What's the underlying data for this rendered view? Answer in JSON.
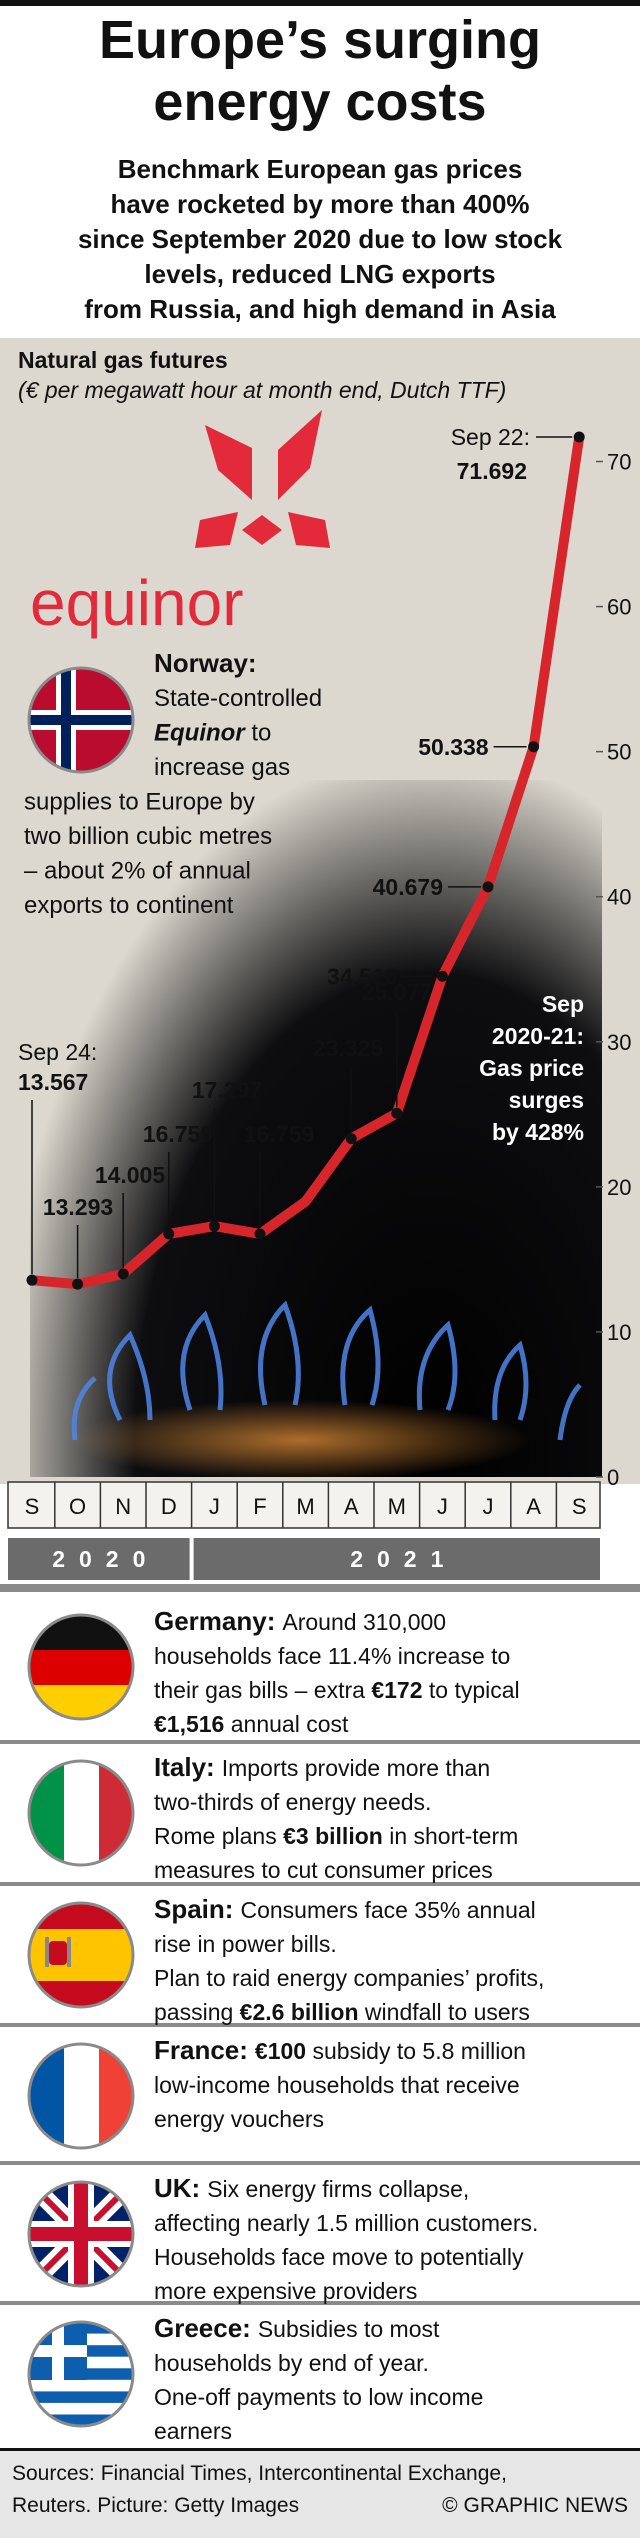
{
  "title": [
    "Europe’s surging",
    "energy costs"
  ],
  "subtitle": [
    "Benchmark European gas prices",
    "have rocketed by more than 400%",
    "since September 2020 due to low stock",
    "levels, reduced LNG exports",
    "from Russia, and high demand in Asia"
  ],
  "logo_text": "equinor",
  "norway": {
    "name": "Norway:",
    "lines": [
      [
        "State-controlled"
      ],
      [
        {
          "bold": "Equinor",
          "italic": true
        },
        " to"
      ],
      [
        "increase gas"
      ],
      [
        "supplies to Europe by"
      ],
      [
        "two billion cubic metres"
      ],
      [
        "– about 2% of annual"
      ],
      [
        "exports to continent"
      ]
    ]
  },
  "chart_data": {
    "type": "line",
    "title": "Natural gas futures",
    "subtitle": "(€ per megawatt hour at month end, Dutch TTF)",
    "categories": [
      "S",
      "O",
      "N",
      "D",
      "J",
      "F",
      "M",
      "A",
      "M",
      "J",
      "J",
      "A",
      "S"
    ],
    "x_groups": [
      "2020",
      "2021"
    ],
    "values": [
      13.567,
      13.293,
      14.005,
      16.759,
      17.297,
      16.759,
      19,
      23.325,
      25.077,
      34.516,
      40.679,
      50.338,
      71.692
    ],
    "value_labels": [
      "13.567",
      "13.293",
      "14.005",
      "16.759",
      "17.297",
      "16.759",
      null,
      "23.325",
      "25.077",
      "34.516",
      "40.679",
      "50.338",
      "71.692"
    ],
    "first_point_label": "Sep 24:",
    "last_point_label": "Sep 22:",
    "annotation": [
      "Sep",
      "2020-21:",
      "Gas price",
      "surges",
      "by 428%"
    ],
    "color": "#d7262b",
    "ylim": [
      0,
      73
    ],
    "yticks": [
      0,
      10,
      20,
      30,
      40,
      50,
      60,
      70
    ],
    "y_axis_side": "right"
  },
  "countries": [
    {
      "name": "Germany:",
      "lines": [
        [
          "Around 310,000"
        ],
        [
          "households face 11.4% increase to"
        ],
        [
          "their gas bills – extra ",
          {
            "bold": "€172"
          },
          " to typical"
        ],
        [
          {
            "bold": "€1,516"
          },
          " annual cost"
        ]
      ]
    },
    {
      "name": "Italy:",
      "lines": [
        [
          "Imports provide more than"
        ],
        [
          "two-thirds of energy needs."
        ],
        [
          "Rome plans ",
          {
            "bold": "€3 billion"
          },
          " in short-term"
        ],
        [
          "measures to cut consumer prices"
        ]
      ]
    },
    {
      "name": "Spain:",
      "lines": [
        [
          "Consumers face 35% annual"
        ],
        [
          "rise in power bills."
        ],
        [
          "Plan to raid energy companies’ profits,"
        ],
        [
          "passing ",
          {
            "bold": "€2.6 billion"
          },
          " windfall to users"
        ]
      ]
    },
    {
      "name": "France:",
      "lines": [
        [
          {
            "bold": "€100"
          },
          " subsidy to 5.8 million"
        ],
        [
          "low-income households that receive"
        ],
        [
          "energy vouchers"
        ]
      ]
    },
    {
      "name": "UK:",
      "lines": [
        [
          "Six energy firms collapse,"
        ],
        [
          "affecting nearly 1.5 million customers."
        ],
        [
          "Households face move to potentially"
        ],
        [
          "more expensive providers"
        ]
      ]
    },
    {
      "name": "Greece:",
      "lines": [
        [
          "Subsidies to most"
        ],
        [
          "households by end of year."
        ],
        [
          "One-off payments to low income"
        ],
        [
          "earners"
        ]
      ]
    }
  ],
  "sources": [
    "Sources: Financial Times, Intercontinental Exchange,",
    "Reuters. Picture: Getty Images"
  ],
  "credit": "© GRAPHIC NEWS"
}
